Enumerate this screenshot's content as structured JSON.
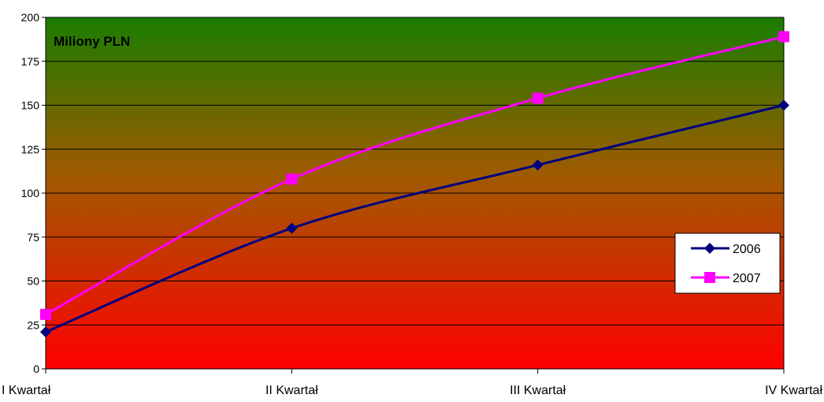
{
  "chart_data": {
    "type": "line",
    "title": "Miliony PLN",
    "categories": [
      "I Kwartał",
      "II Kwartał",
      "III Kwartał",
      "IV Kwartał"
    ],
    "ylim": [
      0,
      200
    ],
    "yticks": [
      0,
      25,
      50,
      75,
      100,
      125,
      150,
      175,
      200
    ],
    "grid": true,
    "legend_position": "right",
    "background_gradient": [
      "#1a7d00",
      "#ff0000"
    ],
    "series": [
      {
        "name": "2006",
        "values": [
          21,
          80,
          116,
          150
        ],
        "color": "#000080",
        "marker": "diamond"
      },
      {
        "name": "2007",
        "values": [
          31,
          108,
          154,
          189
        ],
        "color": "#ff00ff",
        "marker": "square"
      }
    ]
  }
}
